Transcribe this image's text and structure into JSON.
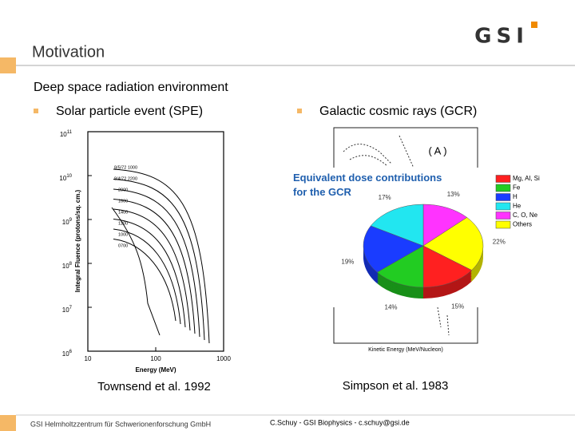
{
  "header": {
    "title": "Motivation",
    "logo": "GSI"
  },
  "subtitle": "Deep space radiation environment",
  "bullets": [
    "Solar particle event (SPE)",
    "Galactic cosmic rays (GCR)"
  ],
  "spe_chart": {
    "y_label": "Integral Fluence (protons/sq. cm.)",
    "x_label": "Energy (MeV)",
    "yticks": [
      {
        "value": 1000000,
        "label": "10",
        "exp": "6"
      },
      {
        "value": 10000000,
        "label": "10",
        "exp": "7"
      },
      {
        "value": 100000000,
        "label": "10",
        "exp": "8"
      },
      {
        "value": 1000000000,
        "label": "10",
        "exp": "9"
      },
      {
        "value": 10000000000,
        "label": "10",
        "exp": "10"
      },
      {
        "value": 100000000000,
        "label": "10",
        "exp": "11"
      }
    ],
    "xticks": [
      10,
      100,
      1000
    ],
    "ylim": [
      1000000,
      100000000000
    ],
    "xlim": [
      10,
      1000
    ],
    "log_scale": true,
    "curve_labels": [
      "8/5/72 1000",
      "8/4/72 2200",
      "2000",
      "1600",
      "1400",
      "1200",
      "1000",
      "0700"
    ],
    "citation": "Townsend et al. 1992"
  },
  "gcr_chart": {
    "panel": "( A )",
    "x_label": "Kinetic Energy (MeV/Nucleon)",
    "citation": "Simpson et al. 1983"
  },
  "gcr_pie": {
    "title": "Equivalent dose contributions for the GCR",
    "categories": [
      "C, O, Ne",
      "Others",
      "Mg, Al, Si",
      "Fe",
      "H",
      "He"
    ],
    "values": [
      13,
      22,
      15,
      14,
      19,
      17
    ],
    "value_labels": [
      "13%",
      "22%",
      "15%",
      "14%",
      "19%",
      "17%"
    ],
    "colors": [
      "#ff33ff",
      "#ffff00",
      "#ff2020",
      "#22cc22",
      "#1a3cff",
      "#22e6f0"
    ],
    "legend_order": [
      2,
      3,
      4,
      5,
      0,
      1
    ]
  },
  "footer": {
    "left": "GSI Helmholtzzentrum für Schwerionenforschung GmbH",
    "right": "C.Schuy - GSI Biophysics - c.schuy@gsi.de"
  }
}
